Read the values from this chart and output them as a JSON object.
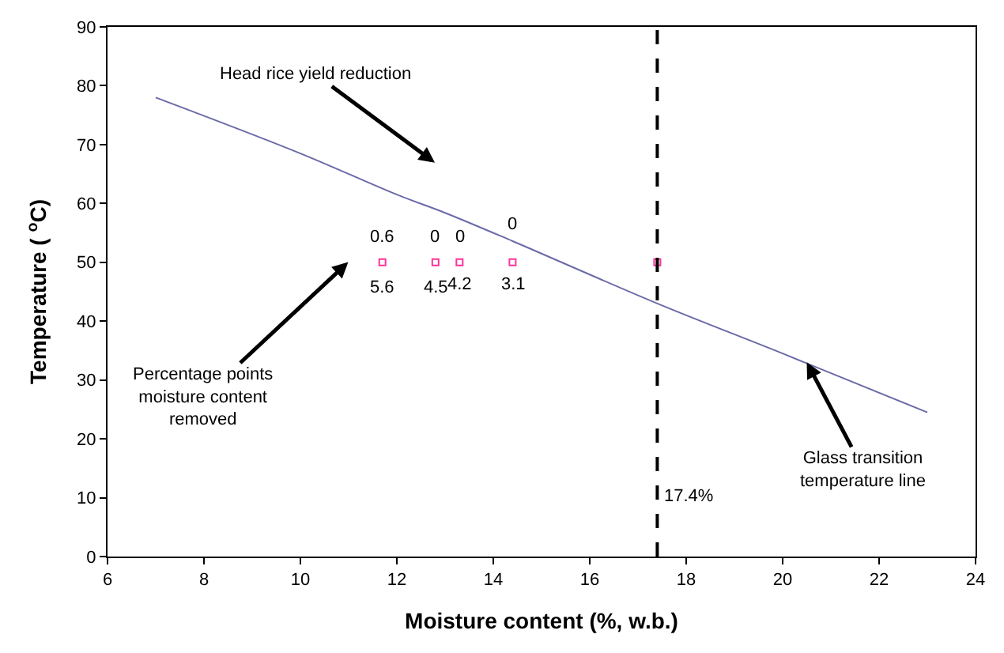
{
  "chart_data": {
    "type": "line",
    "xlabel": "Moisture content (%, w.b.)",
    "ylabel": "Temperature ( $^{o}$C)",
    "xlim": [
      6,
      24
    ],
    "xticks": [
      6,
      8,
      10,
      12,
      14,
      16,
      18,
      20,
      22,
      24
    ],
    "ylim": [
      0,
      90
    ],
    "yticks": [
      0,
      10,
      20,
      30,
      40,
      50,
      60,
      70,
      80,
      90
    ],
    "series": [
      {
        "color": "#6a6aa8",
        "x": [
          7,
          10,
          12,
          13,
          14.4,
          17.4,
          20,
          23
        ],
        "values": [
          78,
          68.5,
          61.5,
          58.4,
          53.6,
          43,
          34.5,
          24.5
        ],
        "marker": "none",
        "line_style": "solid"
      },
      {
        "type": "scatter",
        "color": "#ff3399",
        "x": [
          11.7,
          12.8,
          13.3,
          14.4,
          17.4
        ],
        "values": [
          50,
          50,
          50,
          50,
          50
        ],
        "marker": "square"
      }
    ],
    "ref_lines": [
      {
        "axis": "x",
        "value": 17.4,
        "label": "17.4%",
        "color": "#000000",
        "line_style": "dashed"
      }
    ],
    "annotations": [
      "0.6",
      "0",
      "0",
      "0",
      "5.6",
      "4.5",
      "4.2",
      "3.1",
      "Head rice yield reduction",
      "Percentage points\nmoisture content\nremoved",
      {
        "text": "Glass transition\ntemperature line",
        "x": 20.5,
        "y": 33
      }
    ]
  }
}
